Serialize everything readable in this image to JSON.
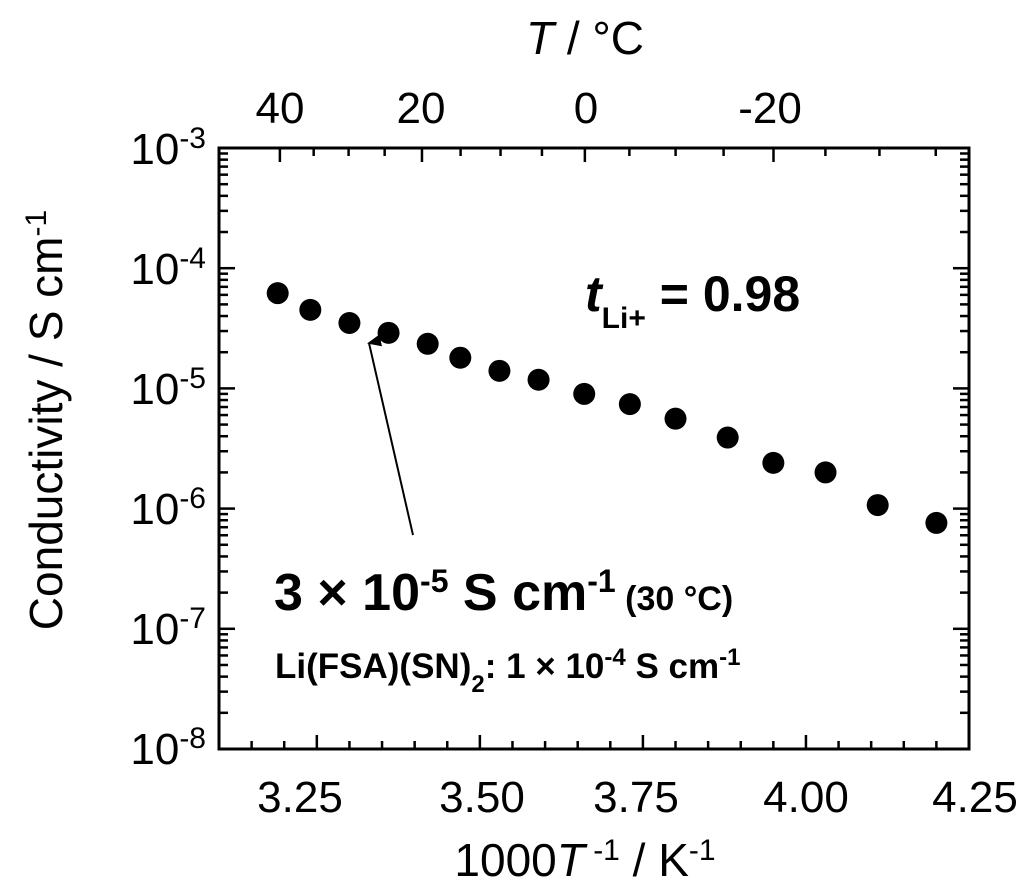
{
  "chart_data": {
    "type": "scatter",
    "x_axis": {
      "label_pre": "1000",
      "label_var": "T",
      "label_sup1": " -1",
      "label_mid": " / K",
      "label_sup2": "-1",
      "ticks": [
        "3.25",
        "3.50",
        "3.75",
        "4.00",
        "4.25"
      ],
      "tick_values": [
        3.25,
        3.5,
        3.75,
        4.0,
        4.25
      ],
      "range": [
        3.1,
        4.25
      ]
    },
    "y_axis": {
      "label_main": "Conductivity / S cm",
      "label_sup": "-1",
      "scale": "log",
      "range": [
        1e-08,
        0.001
      ],
      "tick_base": "10",
      "tick_exponents": [
        "-3",
        "-4",
        "-5",
        "-6",
        "-7",
        "-8"
      ],
      "tick_values": [
        0.001,
        0.0001,
        1e-05,
        1e-06,
        1e-07,
        1e-08
      ]
    },
    "top_axis": {
      "label_var": "T",
      "label_rest": " / °C",
      "ticks": [
        "40",
        "20",
        "0",
        "-20"
      ],
      "tick_values_celsius": [
        40,
        20,
        0,
        -20
      ]
    },
    "points": [
      {
        "x": 3.19,
        "y": 6.2e-05
      },
      {
        "x": 3.24,
        "y": 4.5e-05
      },
      {
        "x": 3.3,
        "y": 3.5e-05
      },
      {
        "x": 3.36,
        "y": 2.9e-05
      },
      {
        "x": 3.42,
        "y": 2.35e-05
      },
      {
        "x": 3.47,
        "y": 1.8e-05
      },
      {
        "x": 3.53,
        "y": 1.4e-05
      },
      {
        "x": 3.59,
        "y": 1.18e-05
      },
      {
        "x": 3.66,
        "y": 9e-06
      },
      {
        "x": 3.73,
        "y": 7.4e-06
      },
      {
        "x": 3.8,
        "y": 5.6e-06
      },
      {
        "x": 3.88,
        "y": 3.9e-06
      },
      {
        "x": 3.95,
        "y": 2.4e-06
      },
      {
        "x": 4.03,
        "y": 2e-06
      },
      {
        "x": 4.11,
        "y": 1.07e-06
      },
      {
        "x": 4.2,
        "y": 7.6e-07
      }
    ],
    "annotations": {
      "transference": {
        "symbol": "t",
        "subscript": "Li+",
        "rest": " = 0.98"
      },
      "main_value": {
        "mantissa": "3 × 10",
        "exp": "-5",
        "unit": " S cm",
        "unit_exp": "-1",
        "temp": " (30 °C)"
      },
      "reference": {
        "p1": "Li(FSA)(SN)",
        "sub": "2",
        "p2": ": 1 × 10",
        "exp": "-4",
        "p3": " S cm",
        "exp2": "-1"
      },
      "arrow_target": {
        "x": 3.33,
        "y": 3e-05
      }
    },
    "marker_color": "#000000",
    "grid": false
  }
}
